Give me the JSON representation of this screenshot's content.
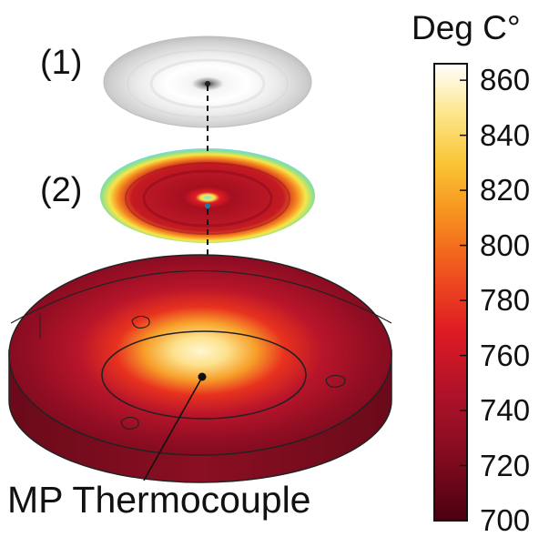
{
  "labels": {
    "layer_1": "(1)",
    "layer_2": "(2)",
    "sensor": "MP Thermocouple"
  },
  "colorbar": {
    "title": "Deg C°",
    "min": 700,
    "max": 866,
    "ticks": [
      "860",
      "840",
      "820",
      "800",
      "780",
      "760",
      "740",
      "720",
      "700"
    ],
    "tick_values": [
      860,
      840,
      820,
      800,
      780,
      760,
      740,
      720,
      700
    ],
    "colormap": [
      "#4a0012",
      "#7a0a1c",
      "#b0122a",
      "#e01c24",
      "#f0561e",
      "#f7901f",
      "#fac433",
      "#fde894",
      "#ffffff"
    ]
  }
}
